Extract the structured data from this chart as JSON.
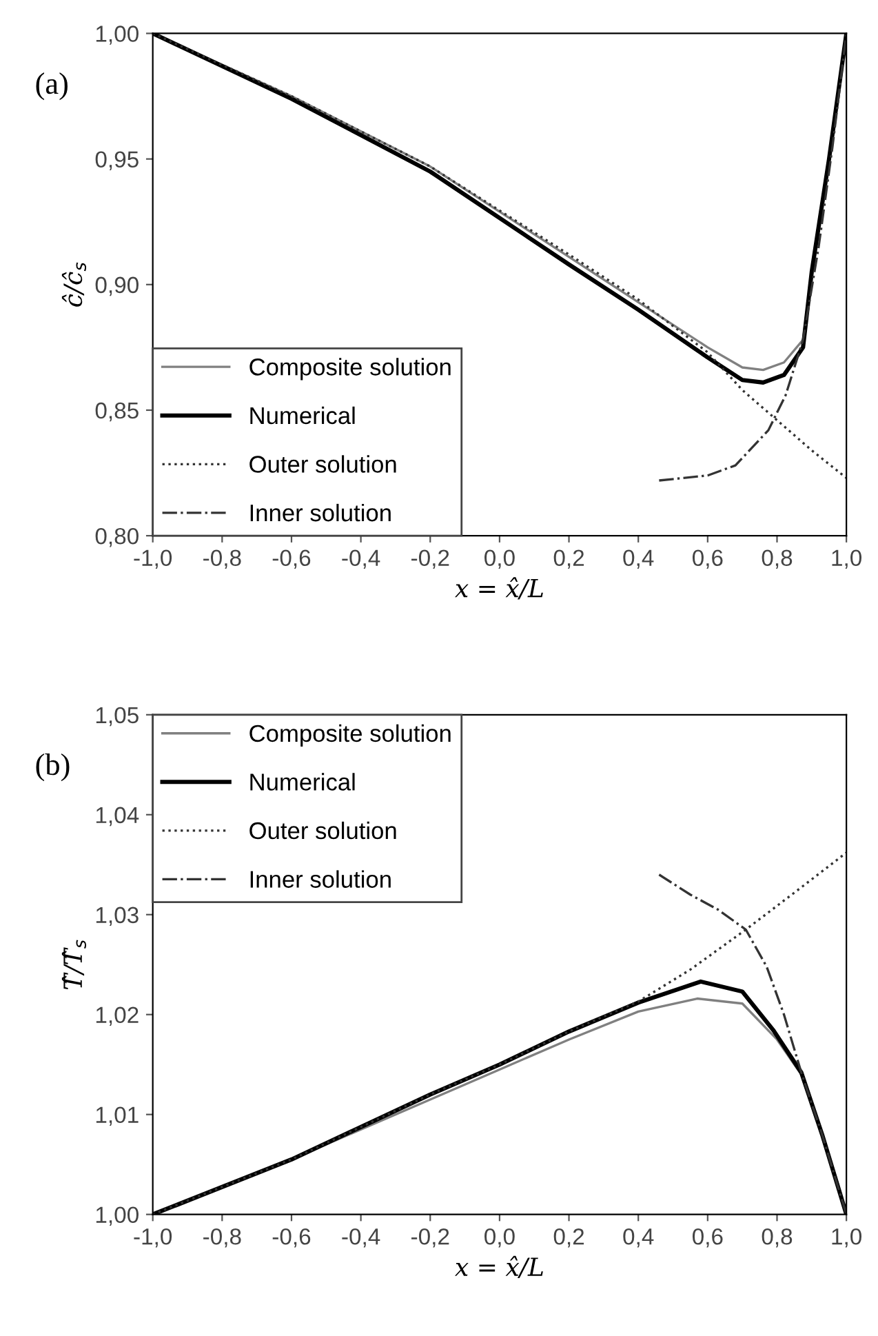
{
  "chart_data": [
    {
      "type": "line",
      "ylabel": "ĉ/ĉ$_{s}$",
      "xlabel": "x = x̂/L",
      "annotations": [
        "(a)"
      ],
      "xlim": [
        -1.0,
        1.0
      ],
      "xticks": [
        {
          "value": -1.0,
          "label": "-1,0"
        },
        {
          "value": -0.8,
          "label": "-0,8"
        },
        {
          "value": -0.6,
          "label": "-0,6"
        },
        {
          "value": -0.4,
          "label": "-0,4"
        },
        {
          "value": -0.2,
          "label": "-0,2"
        },
        {
          "value": 0.0,
          "label": "0,0"
        },
        {
          "value": 0.2,
          "label": "0,2"
        },
        {
          "value": 0.4,
          "label": "0,4"
        },
        {
          "value": 0.6,
          "label": "0,6"
        },
        {
          "value": 0.8,
          "label": "0,8"
        },
        {
          "value": 1.0,
          "label": "1,0"
        }
      ],
      "ylim": [
        0.8,
        1.0
      ],
      "yticks": [
        {
          "value": 0.8,
          "label": "0,80"
        },
        {
          "value": 0.85,
          "label": "0,85"
        },
        {
          "value": 0.9,
          "label": "0,90"
        },
        {
          "value": 0.95,
          "label": "0,95"
        },
        {
          "value": 1.0,
          "label": "1,00"
        }
      ],
      "legend": "bottom left",
      "grid": false,
      "series": [
        {
          "name": "Composite solution",
          "color": "#808080",
          "line_style": "solid",
          "x": [
            -1.0,
            -0.6,
            -0.2,
            0.2,
            0.4,
            0.6,
            0.7,
            0.76,
            0.82,
            0.875,
            0.9,
            0.95,
            1.0
          ],
          "values": [
            1.0,
            0.975,
            0.947,
            0.911,
            0.893,
            0.875,
            0.867,
            0.866,
            0.869,
            0.878,
            0.905,
            0.95,
            1.0
          ]
        },
        {
          "name": "Numerical",
          "color": "#000000",
          "line_style": "solid",
          "x": [
            -1.0,
            -0.6,
            -0.2,
            0.2,
            0.4,
            0.6,
            0.7,
            0.76,
            0.82,
            0.875,
            0.9,
            0.95,
            1.0
          ],
          "values": [
            1.0,
            0.974,
            0.945,
            0.908,
            0.89,
            0.871,
            0.862,
            0.861,
            0.864,
            0.875,
            0.905,
            0.95,
            1.0
          ]
        },
        {
          "name": "Outer solution",
          "color": "#333333",
          "line_style": "dotted",
          "x": [
            -1.0,
            -0.6,
            -0.2,
            0.2,
            0.4,
            0.6,
            0.7,
            0.8,
            0.9,
            1.0
          ],
          "values": [
            1.0,
            0.975,
            0.947,
            0.912,
            0.894,
            0.873,
            0.858,
            0.846,
            0.834,
            0.823
          ]
        },
        {
          "name": "Inner solution",
          "color": "#333333",
          "line_style": "dashdot",
          "x": [
            0.46,
            0.6,
            0.68,
            0.775,
            0.825,
            0.875,
            0.92,
            0.96,
            1.0
          ],
          "values": [
            0.822,
            0.824,
            0.828,
            0.842,
            0.856,
            0.878,
            0.915,
            0.955,
            1.0
          ]
        }
      ]
    },
    {
      "type": "line",
      "ylabel": "T̂/T̂$_{s}$",
      "xlabel": "x = x̂/L",
      "annotations": [
        "(b)"
      ],
      "xlim": [
        -1.0,
        1.0
      ],
      "xticks": [
        {
          "value": -1.0,
          "label": "-1,0"
        },
        {
          "value": -0.8,
          "label": "-0,8"
        },
        {
          "value": -0.6,
          "label": "-0,6"
        },
        {
          "value": -0.4,
          "label": "-0,4"
        },
        {
          "value": -0.2,
          "label": "-0,2"
        },
        {
          "value": 0.0,
          "label": "0,0"
        },
        {
          "value": 0.2,
          "label": "0,2"
        },
        {
          "value": 0.4,
          "label": "0,4"
        },
        {
          "value": 0.6,
          "label": "0,6"
        },
        {
          "value": 0.8,
          "label": "0,8"
        },
        {
          "value": 1.0,
          "label": "1,0"
        }
      ],
      "ylim": [
        1.0,
        1.05
      ],
      "yticks": [
        {
          "value": 1.0,
          "label": "1,00"
        },
        {
          "value": 1.01,
          "label": "1,01"
        },
        {
          "value": 1.02,
          "label": "1,02"
        },
        {
          "value": 1.03,
          "label": "1,03"
        },
        {
          "value": 1.04,
          "label": "1,04"
        },
        {
          "value": 1.05,
          "label": "1,05"
        }
      ],
      "legend": "top left",
      "grid": false,
      "series": [
        {
          "name": "Composite solution",
          "color": "#808080",
          "line_style": "solid",
          "x": [
            -1.0,
            -0.6,
            -0.2,
            0.0,
            0.2,
            0.4,
            0.57,
            0.7,
            0.8,
            0.87,
            0.93,
            1.0
          ],
          "values": [
            1.0,
            1.0055,
            1.0115,
            1.0145,
            1.0175,
            1.0203,
            1.0216,
            1.0211,
            1.0175,
            1.014,
            1.008,
            1.0
          ]
        },
        {
          "name": "Numerical",
          "color": "#000000",
          "line_style": "solid",
          "x": [
            -1.0,
            -0.6,
            -0.2,
            0.0,
            0.2,
            0.4,
            0.58,
            0.7,
            0.79,
            0.87,
            0.93,
            1.0
          ],
          "values": [
            1.0,
            1.0055,
            1.012,
            1.015,
            1.0183,
            1.0212,
            1.0233,
            1.0223,
            1.0184,
            1.0142,
            1.008,
            1.0
          ]
        },
        {
          "name": "Outer solution",
          "color": "#333333",
          "line_style": "dotted",
          "x": [
            -1.0,
            -0.6,
            -0.2,
            0.0,
            0.2,
            0.4,
            0.55,
            0.71,
            0.85,
            1.0
          ],
          "values": [
            1.0,
            1.0055,
            1.012,
            1.015,
            1.0183,
            1.0213,
            1.0245,
            1.0285,
            1.0322,
            1.0362
          ]
        },
        {
          "name": "Inner solution",
          "color": "#333333",
          "line_style": "dashdot",
          "x": [
            0.46,
            0.55,
            0.63,
            0.71,
            0.77,
            0.82,
            0.87,
            0.93,
            1.0
          ],
          "values": [
            1.034,
            1.032,
            1.0305,
            1.0285,
            1.0248,
            1.02,
            1.0142,
            1.008,
            1.0
          ]
        }
      ]
    }
  ]
}
